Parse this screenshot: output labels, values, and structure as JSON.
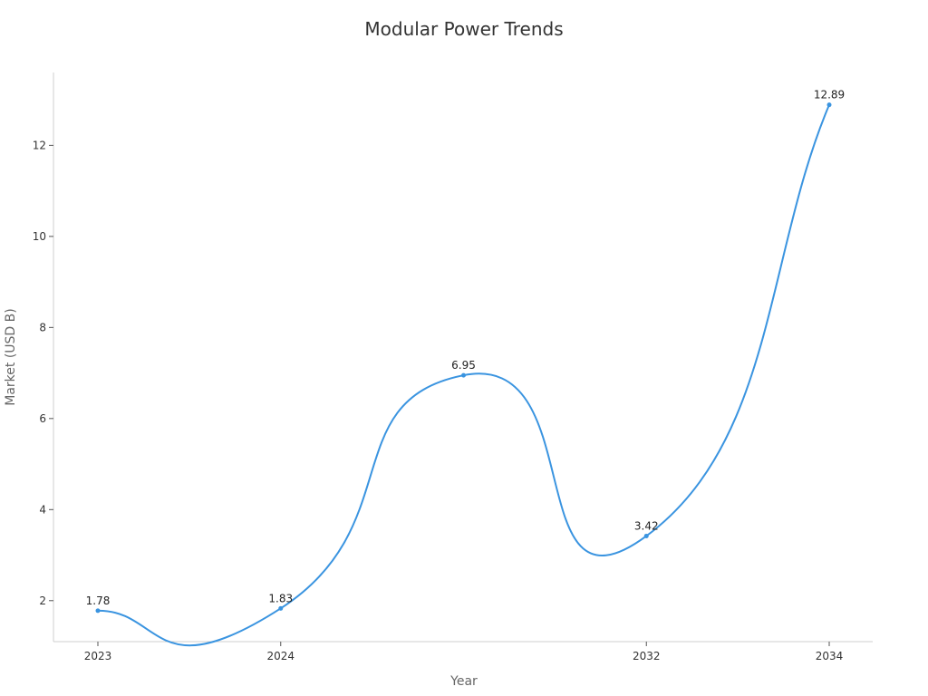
{
  "chart_data": {
    "type": "line",
    "title": "Modular Power Trends",
    "xlabel": "Year",
    "ylabel": "Market (USD B)",
    "categories": [
      "2023",
      "2024",
      "2024",
      "2032",
      "2034"
    ],
    "series": [
      {
        "values": [
          1.78,
          1.83,
          6.95,
          3.42,
          12.89
        ],
        "color": "#3a94e0"
      }
    ],
    "x_ticks": [
      "2023",
      "2024",
      "2032",
      "2034"
    ],
    "y_ticks": [
      2,
      4,
      6,
      8,
      10,
      12
    ],
    "ylim": [
      1.1,
      13.6
    ],
    "grid": false,
    "smooth": true,
    "data_labels": [
      "1.78",
      "1.83",
      "6.95",
      "3.42",
      "12.89"
    ]
  }
}
